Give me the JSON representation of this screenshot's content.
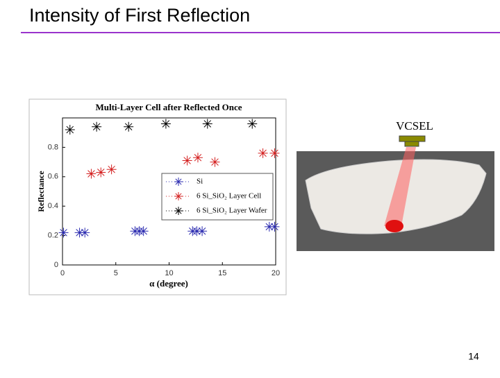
{
  "slide": {
    "title": "Intensity of First Reflection",
    "page_number": "14",
    "photo_label": "VCSEL"
  },
  "chart_data": {
    "type": "scatter",
    "title": "Multi-Layer Cell after Reflected Once",
    "x_label": "α (degree)",
    "y_label": "Reflectance",
    "xlim": [
      0,
      20
    ],
    "xticks": [
      0,
      5,
      10,
      15,
      20
    ],
    "ylim": [
      0,
      1
    ],
    "yticks": [
      0,
      0.2,
      0.4,
      0.6,
      0.8
    ],
    "series": [
      {
        "name": "Si",
        "color": "#2b2bb0",
        "x": [
          0.1,
          1.6,
          2.1,
          6.8,
          7.2,
          7.6,
          12.2,
          12.6,
          13.1,
          19.4,
          19.9
        ],
        "values": [
          0.22,
          0.22,
          0.22,
          0.23,
          0.23,
          0.23,
          0.23,
          0.23,
          0.23,
          0.26,
          0.26
        ]
      },
      {
        "name": "6 Si_SiO₂ Layer Cell",
        "color": "#d42020",
        "x": [
          2.7,
          3.6,
          4.6,
          11.7,
          12.7,
          14.3,
          18.8,
          19.9
        ],
        "values": [
          0.62,
          0.63,
          0.65,
          0.71,
          0.73,
          0.7,
          0.76,
          0.76
        ]
      },
      {
        "name": "6 Si_SiO₂ Layer Wafer",
        "color": "#000000",
        "x": [
          0.7,
          3.2,
          6.2,
          9.7,
          13.6,
          17.8
        ],
        "values": [
          0.92,
          0.94,
          0.94,
          0.96,
          0.96,
          0.96
        ]
      }
    ]
  }
}
